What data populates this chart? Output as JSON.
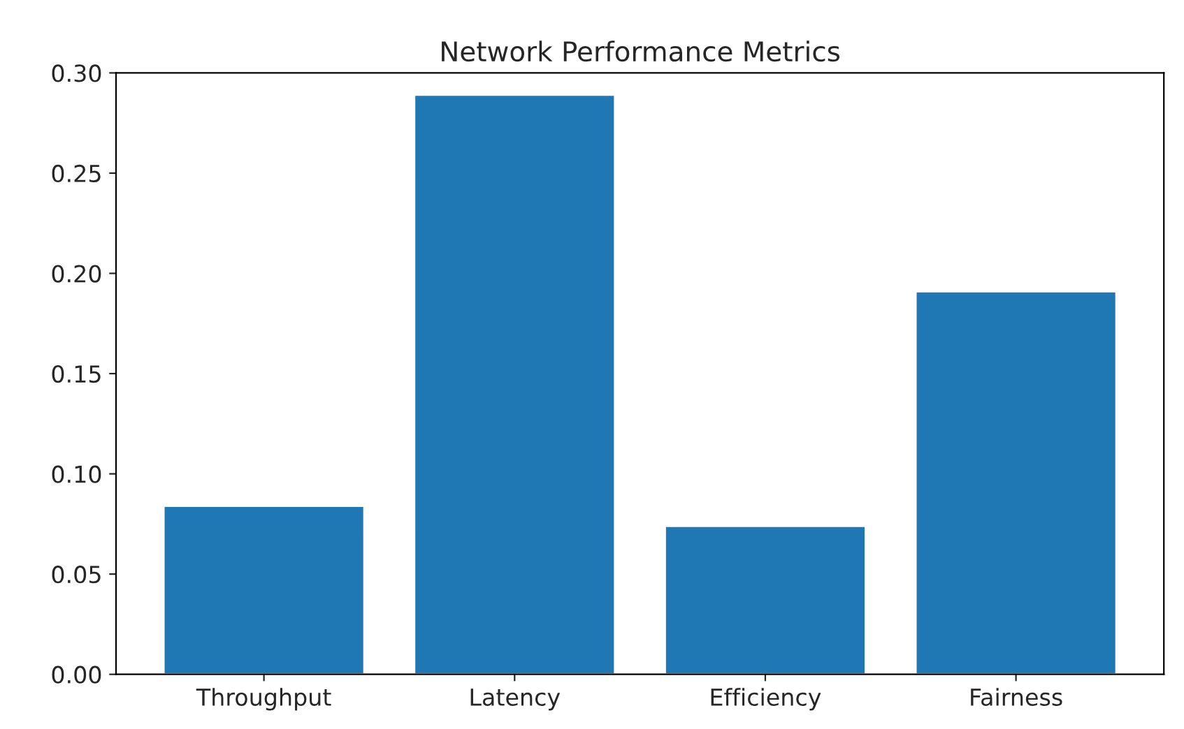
{
  "chart_data": {
    "type": "bar",
    "title": "Network Performance Metrics",
    "categories": [
      "Throughput",
      "Latency",
      "Efficiency",
      "Fairness"
    ],
    "values": [
      0.084,
      0.289,
      0.074,
      0.191
    ],
    "color": "#1f77b4",
    "ylim": [
      0,
      0.3
    ],
    "yticks": [
      {
        "value": 0,
        "label": "0.00"
      },
      {
        "value": 0.05,
        "label": "0.05"
      },
      {
        "value": 0.1,
        "label": "0.10"
      },
      {
        "value": 0.15,
        "label": "0.15"
      },
      {
        "value": 0.2,
        "label": "0.20"
      },
      {
        "value": 0.25,
        "label": "0.25"
      },
      {
        "value": 0.3,
        "label": "0.30"
      }
    ],
    "grid": false
  }
}
